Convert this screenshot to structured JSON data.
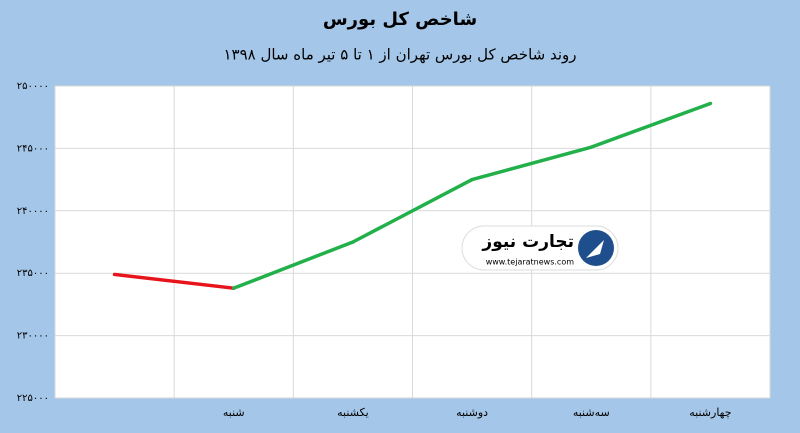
{
  "chart_data": {
    "type": "line",
    "title": "شاخص کل بورس",
    "subtitle": "روند شاخص کل بورس تهران از ۱ تا ۵ تیر ماه سال ۱۳۹۸",
    "categories": [
      null,
      "شنبه",
      "یکشنبه",
      "دوشنبه",
      "سه‌شنبه",
      "چهارشنبه"
    ],
    "values": [
      234900,
      233800,
      237500,
      242500,
      245100,
      248600
    ],
    "colors": {
      "down": "#e8141b",
      "up": "#22b04b"
    },
    "ylim": [
      225000,
      250000
    ],
    "yticks": [
      {
        "value": 225000,
        "label": "۲۲۵۰۰۰"
      },
      {
        "value": 230000,
        "label": "۲۳۰۰۰۰"
      },
      {
        "value": 235000,
        "label": "۲۳۵۰۰۰"
      },
      {
        "value": 240000,
        "label": "۲۴۰۰۰۰"
      },
      {
        "value": 245000,
        "label": "۲۴۵۰۰۰"
      },
      {
        "value": 250000,
        "label": "۲۵۰۰۰۰"
      }
    ],
    "grid": true,
    "watermark": {
      "brand": "تجارت نیوز",
      "url": "www.tejaratnews.com"
    }
  }
}
